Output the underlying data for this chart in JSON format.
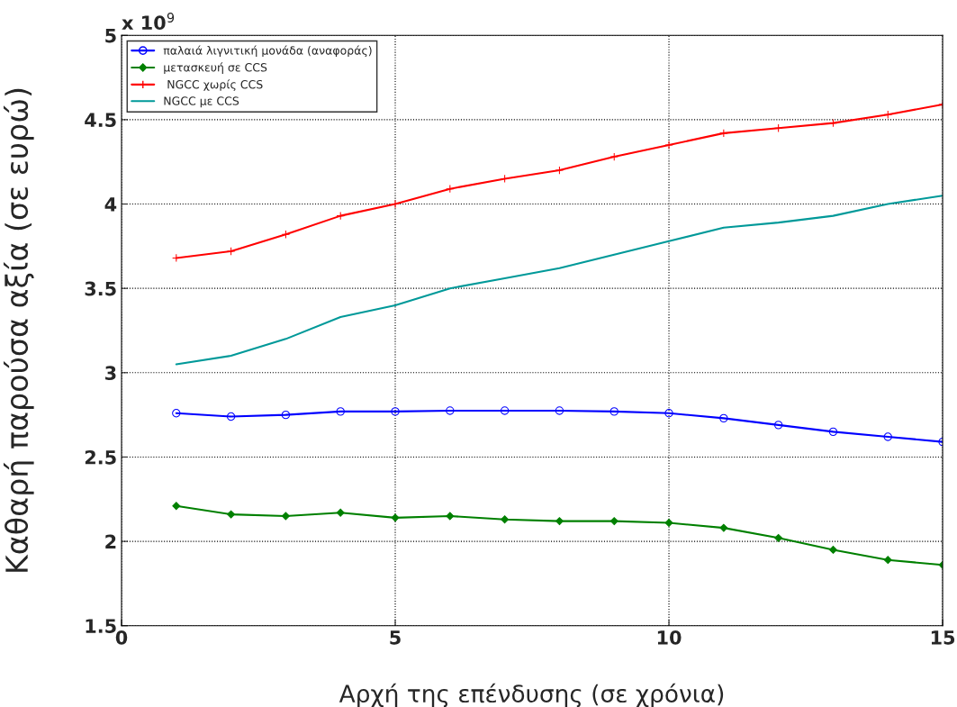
{
  "chart_data": {
    "type": "line",
    "xlabel": "Αρχή της επένδυσης (σε χρόνια)",
    "ylabel": "Καθαρή παρούσα αξία (σε ευρώ)",
    "x": [
      1,
      2,
      3,
      4,
      5,
      6,
      7,
      8,
      9,
      10,
      11,
      12,
      13,
      14,
      15
    ],
    "series": [
      {
        "name": "παλαιά λιγνιτική μονάδα (αναφοράς)",
        "color": "#0000ff",
        "marker": "circle",
        "values": [
          2.76,
          2.74,
          2.75,
          2.77,
          2.77,
          2.775,
          2.775,
          2.775,
          2.77,
          2.76,
          2.73,
          2.69,
          2.65,
          2.62,
          2.59
        ]
      },
      {
        "name": "μετασκευή σε CCS",
        "color": "#008000",
        "marker": "diamond",
        "values": [
          2.21,
          2.16,
          2.15,
          2.17,
          2.14,
          2.15,
          2.13,
          2.12,
          2.12,
          2.11,
          2.08,
          2.02,
          1.95,
          1.89,
          1.86
        ]
      },
      {
        "name": " NGCC χωρίς CCS",
        "color": "#ff0000",
        "marker": "cross",
        "values": [
          3.68,
          3.72,
          3.82,
          3.93,
          4.0,
          4.09,
          4.15,
          4.2,
          4.28,
          4.35,
          4.42,
          4.45,
          4.48,
          4.53,
          4.59
        ]
      },
      {
        "name": "NGCC με CCS",
        "color": "#009999",
        "marker": "none",
        "values": [
          3.05,
          3.1,
          3.2,
          3.33,
          3.4,
          3.5,
          3.56,
          3.62,
          3.7,
          3.78,
          3.86,
          3.89,
          3.93,
          4.0,
          4.05
        ]
      }
    ],
    "xlim": [
      0,
      15
    ],
    "xticks": [
      0,
      5,
      10,
      15
    ],
    "ylim": [
      1.5,
      5
    ],
    "yticks": [
      1.5,
      2,
      2.5,
      3,
      3.5,
      4,
      4.5,
      5
    ],
    "annotations": [
      "x 10$^{9}$"
    ],
    "grid": true,
    "legend": "top left",
    "line_style": "solid"
  }
}
